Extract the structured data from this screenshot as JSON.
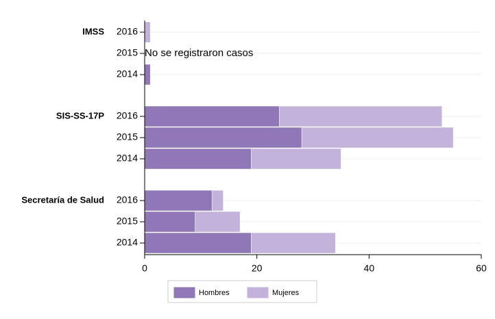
{
  "chart_data": {
    "type": "stacked-barh",
    "groups": [
      "IMSS",
      "SIS-SS-17P",
      "Secretaría de Salud"
    ],
    "categories": [
      "2016",
      "2015",
      "2014",
      "2016",
      "2015",
      "2014",
      "2016",
      "2015",
      "2014"
    ],
    "series": [
      {
        "name": "Hombres",
        "color": "#8f78b5",
        "values": [
          0,
          null,
          1,
          24,
          28,
          19,
          12,
          9,
          19
        ]
      },
      {
        "name": "Mujeres",
        "color": "#c3b3da",
        "values": [
          1,
          null,
          0,
          29,
          27,
          16,
          2,
          8,
          15
        ]
      }
    ],
    "annotation": "No se  registraron casos",
    "xlim": [
      0,
      60
    ],
    "xticks": [
      0,
      20,
      40,
      60
    ],
    "grid": true
  }
}
